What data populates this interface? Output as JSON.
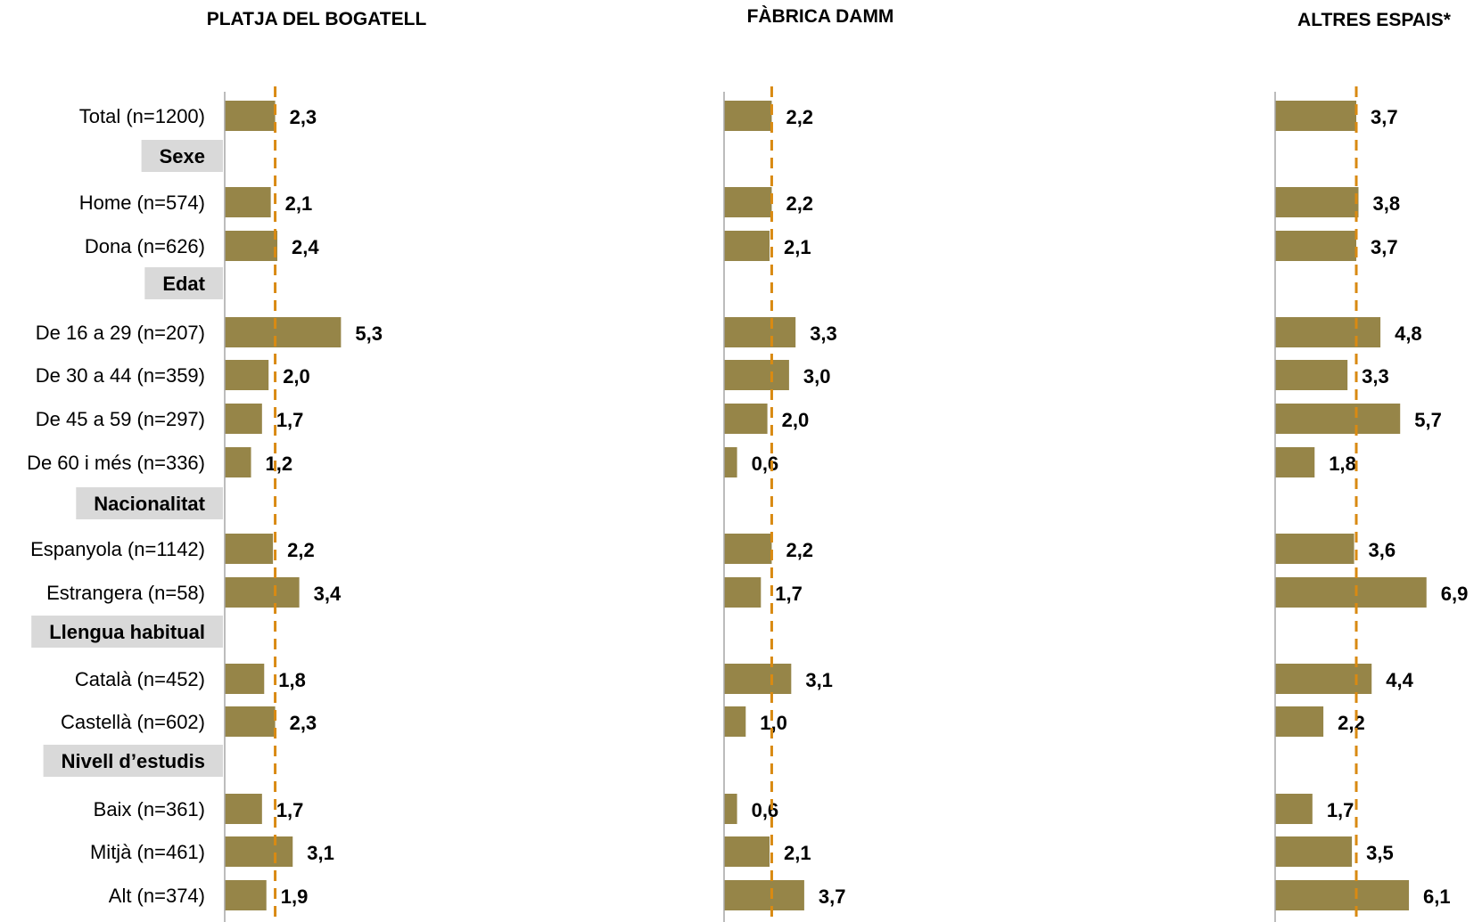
{
  "chart_data": {
    "type": "bar",
    "orientation": "horizontal",
    "colors": {
      "bar": "#968548",
      "reference_line": "#d98a12",
      "group_background": "#d9d9d9",
      "axis": "#a6a6a6"
    },
    "rows": [
      {
        "kind": "data",
        "label": "Total (n=1200)"
      },
      {
        "kind": "group",
        "label": "Sexe"
      },
      {
        "kind": "data",
        "label": "Home (n=574)"
      },
      {
        "kind": "data",
        "label": "Dona (n=626)"
      },
      {
        "kind": "group",
        "label": "Edat"
      },
      {
        "kind": "data",
        "label": "De 16 a 29 (n=207)"
      },
      {
        "kind": "data",
        "label": "De 30 a 44 (n=359)"
      },
      {
        "kind": "data",
        "label": "De 45 a 59 (n=297)"
      },
      {
        "kind": "data",
        "label": "De 60 i més (n=336)"
      },
      {
        "kind": "group",
        "label": "Nacionalitat"
      },
      {
        "kind": "data",
        "label": "Espanyola (n=1142)"
      },
      {
        "kind": "data",
        "label": "Estrangera (n=58)"
      },
      {
        "kind": "group",
        "label": "Llengua habitual"
      },
      {
        "kind": "data",
        "label": "Català (n=452)"
      },
      {
        "kind": "data",
        "label": "Castellà (n=602)"
      },
      {
        "kind": "group",
        "label": "Nivell d’estudis"
      },
      {
        "kind": "data",
        "label": "Baix (n=361)"
      },
      {
        "kind": "data",
        "label": "Mitjà (n=461)"
      },
      {
        "kind": "data",
        "label": "Alt (n=374)"
      }
    ],
    "panels": [
      {
        "title": "PLATJA DEL BOGATELL",
        "reference": 2.3,
        "values": [
          2.3,
          null,
          2.1,
          2.4,
          null,
          5.3,
          2.0,
          1.7,
          1.2,
          null,
          2.2,
          3.4,
          null,
          1.8,
          2.3,
          null,
          1.7,
          3.1,
          1.9
        ],
        "labels": [
          "2,3",
          "",
          "2,1",
          "2,4",
          "",
          "5,3",
          "2,0",
          "1,7",
          "1,2",
          "",
          "2,2",
          "3,4",
          "",
          "1,8",
          "2,3",
          "",
          "1,7",
          "3,1",
          "1,9"
        ]
      },
      {
        "title": "FÀBRICA DAMM",
        "reference": 2.2,
        "values": [
          2.2,
          null,
          2.2,
          2.1,
          null,
          3.3,
          3.0,
          2.0,
          0.6,
          null,
          2.2,
          1.7,
          null,
          3.1,
          1.0,
          null,
          0.6,
          2.1,
          3.7
        ],
        "labels": [
          "2,2",
          "",
          "2,2",
          "2,1",
          "",
          "3,3",
          "3,0",
          "2,0",
          "0,6",
          "",
          "2,2",
          "1,7",
          "",
          "3,1",
          "1,0",
          "",
          "0,6",
          "2,1",
          "3,7"
        ]
      },
      {
        "title": "ALTRES ESPAIS*",
        "reference": 3.7,
        "values": [
          3.7,
          null,
          3.8,
          3.7,
          null,
          4.8,
          3.3,
          5.7,
          1.8,
          null,
          3.6,
          6.9,
          null,
          4.4,
          2.2,
          null,
          1.7,
          3.5,
          6.1
        ],
        "labels": [
          "3,7",
          "",
          "3,8",
          "3,7",
          "",
          "4,8",
          "3,3",
          "5,7",
          "1,8",
          "",
          "3,6",
          "6,9",
          "",
          "4,4",
          "2,2",
          "",
          "1,7",
          "3,5",
          "6,1"
        ]
      }
    ]
  }
}
